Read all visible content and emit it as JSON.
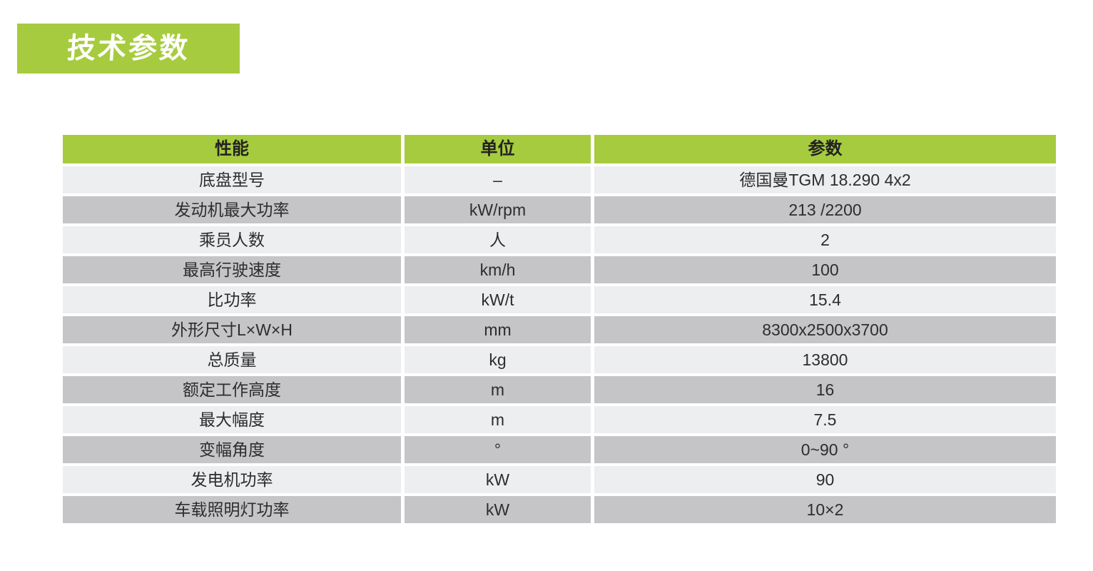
{
  "page": {
    "title": "技术参数",
    "accent_color": "#a7cb3e",
    "row_light_color": "#eceef0",
    "row_dark_color": "#c5c5c7"
  },
  "table": {
    "headers": [
      "性能",
      "单位",
      "参数"
    ],
    "rows": [
      {
        "label": "底盘型号",
        "unit": "–",
        "value": "德国曼TGM 18.290 4x2"
      },
      {
        "label": "发动机最大功率",
        "unit": "kW/rpm",
        "value": "213 /2200"
      },
      {
        "label": "乘员人数",
        "unit": "人",
        "value": "2"
      },
      {
        "label": "最高行驶速度",
        "unit": "km/h",
        "value": "100"
      },
      {
        "label": "比功率",
        "unit": "kW/t",
        "value": "15.4"
      },
      {
        "label": "外形尺寸L×W×H",
        "unit": "mm",
        "value": "8300x2500x3700"
      },
      {
        "label": "总质量",
        "unit": "kg",
        "value": "13800"
      },
      {
        "label": "额定工作高度",
        "unit": "m",
        "value": "16"
      },
      {
        "label": "最大幅度",
        "unit": "m",
        "value": "7.5"
      },
      {
        "label": "变幅角度",
        "unit": "°",
        "value": "0~90 °"
      },
      {
        "label": "发电机功率",
        "unit": "kW",
        "value": "90"
      },
      {
        "label": "车载照明灯功率",
        "unit": "kW",
        "value": "10×2"
      }
    ]
  }
}
